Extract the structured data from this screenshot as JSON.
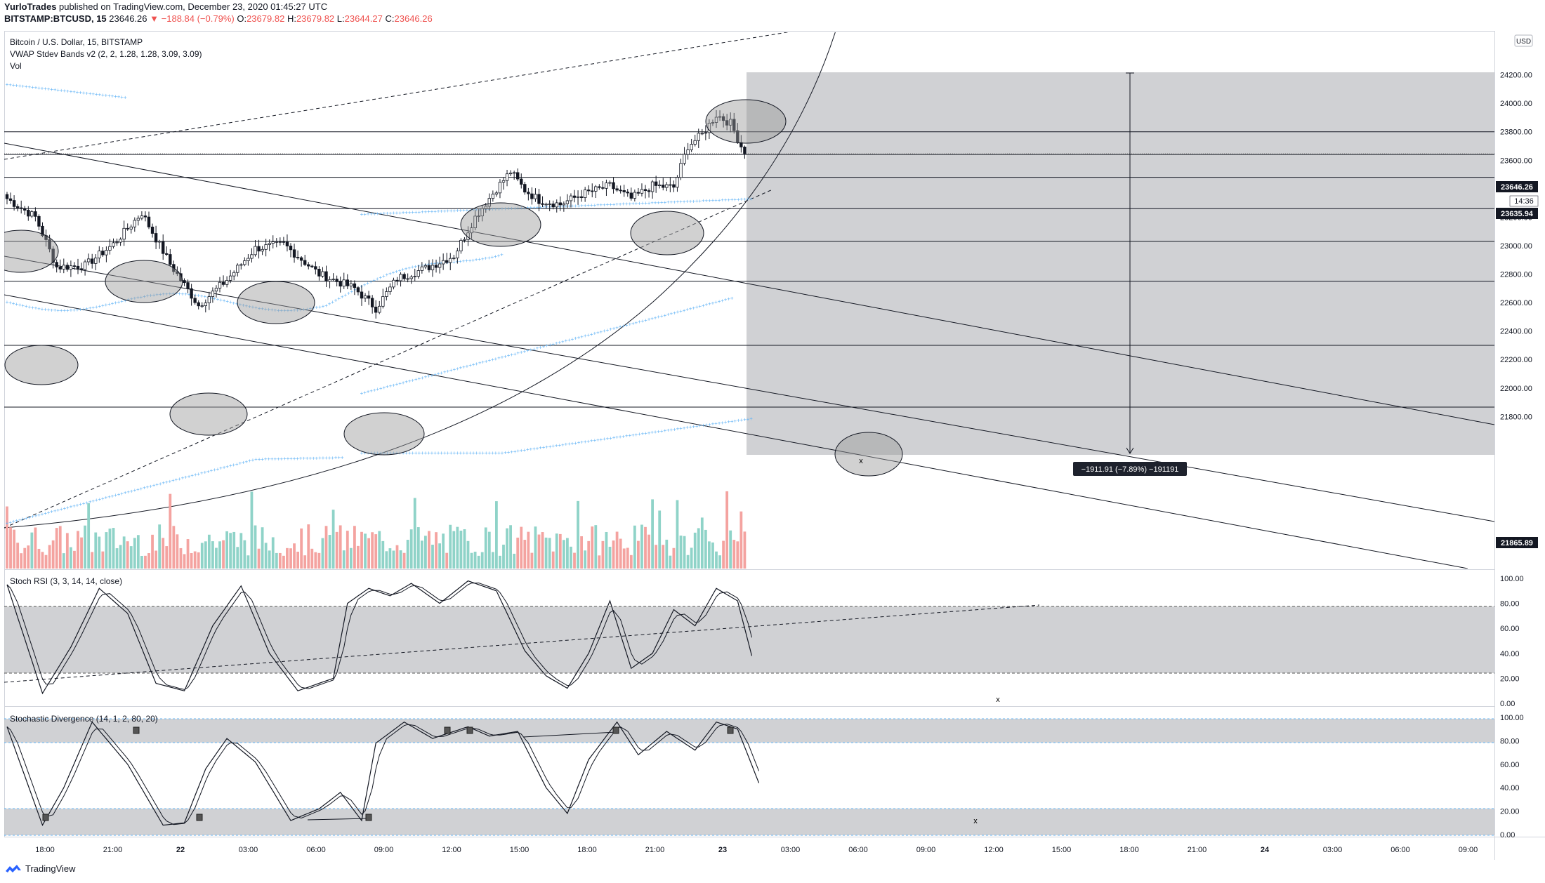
{
  "header": {
    "line1": {
      "author": "YurloTrades",
      "rest": "published on TradingView.com, December 23, 2020 01:45:27 UTC"
    },
    "line2": {
      "symbol": "BITSTAMP:BTCUSD, 15",
      "price": "23646.26",
      "change": "−188.84 (−0.79%)",
      "o_label": "O:",
      "o": "23679.82",
      "h_label": "H:",
      "h": "23679.82",
      "l_label": "L:",
      "l": "23644.27",
      "c_label": "C:",
      "c": "23646.26"
    }
  },
  "legend": {
    "title": "Bitcoin / U.S. Dollar, 15, BITSTAMP",
    "vwap": "VWAP Stdev Bands v2 (2, 2, 1.28, 1.28, 3.09, 3.09)",
    "vol": "Vol",
    "stoch_rsi": "Stoch RSI (3, 3, 14, 14, close)",
    "stoch_div": "Stochastic Divergence (14, 1, 2, 80, 20)"
  },
  "currency_button": "USD",
  "price_tags": {
    "last": "23646.26",
    "countdown": "14:36",
    "level": "23635.94",
    "bottom": "21865.89"
  },
  "measure_label": "−1911.91 (−7.89%) −191191",
  "x_marks": [
    "x",
    "x",
    "x"
  ],
  "footer": {
    "brand": "TradingView"
  },
  "colors": {
    "up": "#26a69a",
    "down": "#ef5350",
    "vol_up": "#8fd3c8",
    "vol_down": "#f4a3a0",
    "vwap": "#64b5f6",
    "shade": "#c8c9cc",
    "line": "#131722"
  },
  "chart_data": [
    {
      "type": "candlestick",
      "title": "Bitcoin / U.S. Dollar, 15, BITSTAMP",
      "ylim": [
        21700,
        24400
      ],
      "y_ticks": [
        "24200.00",
        "24000.00",
        "23800.00",
        "23600.00",
        "23400.00",
        "23200.00",
        "23000.00",
        "22800.00",
        "22600.00",
        "22400.00",
        "22200.00",
        "22000.00",
        "21800.00"
      ],
      "x_ticks": [
        "18:00",
        "21:00",
        "22",
        "03:00",
        "06:00",
        "09:00",
        "12:00",
        "15:00",
        "18:00",
        "21:00",
        "23",
        "03:00",
        "06:00",
        "09:00",
        "12:00",
        "15:00",
        "18:00",
        "21:00",
        "24",
        "03:00",
        "06:00",
        "09:00"
      ],
      "horizontal_levels": [
        23800,
        23640,
        23480,
        23260,
        23030,
        22750,
        22300,
        21865.89
      ],
      "close_anchors": [
        [
          0,
          23330
        ],
        [
          8,
          23200
        ],
        [
          14,
          22850
        ],
        [
          22,
          22860
        ],
        [
          30,
          23010
        ],
        [
          38,
          23230
        ],
        [
          46,
          22870
        ],
        [
          54,
          22580
        ],
        [
          62,
          22760
        ],
        [
          70,
          22980
        ],
        [
          78,
          23010
        ],
        [
          88,
          22800
        ],
        [
          98,
          22700
        ],
        [
          104,
          22560
        ],
        [
          110,
          22770
        ],
        [
          118,
          22840
        ],
        [
          126,
          22930
        ],
        [
          132,
          23200
        ],
        [
          138,
          23400
        ],
        [
          142,
          23520
        ],
        [
          146,
          23390
        ],
        [
          150,
          23320
        ],
        [
          156,
          23290
        ],
        [
          162,
          23360
        ],
        [
          170,
          23420
        ],
        [
          176,
          23330
        ],
        [
          182,
          23420
        ],
        [
          188,
          23410
        ],
        [
          192,
          23700
        ],
        [
          196,
          23780
        ],
        [
          200,
          23920
        ],
        [
          204,
          23860
        ],
        [
          208,
          23646.26
        ]
      ],
      "volume_series_name": "Vol"
    },
    {
      "type": "line",
      "title": "Stoch RSI (3, 3, 14, 14, close)",
      "ylim": [
        0,
        100
      ],
      "y_ticks": [
        "100.00",
        "80.00",
        "60.00",
        "40.00",
        "20.00",
        "0.00"
      ],
      "band": [
        20,
        80
      ],
      "k_anchors": [
        [
          0,
          95
        ],
        [
          10,
          8
        ],
        [
          18,
          45
        ],
        [
          26,
          92
        ],
        [
          34,
          72
        ],
        [
          42,
          16
        ],
        [
          50,
          10
        ],
        [
          58,
          62
        ],
        [
          66,
          94
        ],
        [
          74,
          40
        ],
        [
          82,
          10
        ],
        [
          92,
          20
        ],
        [
          96,
          80
        ],
        [
          102,
          92
        ],
        [
          108,
          86
        ],
        [
          114,
          96
        ],
        [
          122,
          80
        ],
        [
          130,
          98
        ],
        [
          138,
          90
        ],
        [
          146,
          42
        ],
        [
          152,
          22
        ],
        [
          158,
          12
        ],
        [
          164,
          40
        ],
        [
          170,
          82
        ],
        [
          176,
          28
        ],
        [
          182,
          40
        ],
        [
          188,
          75
        ],
        [
          194,
          62
        ],
        [
          200,
          92
        ],
        [
          206,
          82
        ],
        [
          210,
          38
        ]
      ]
    },
    {
      "type": "line",
      "title": "Stochastic Divergence (14, 1, 2, 80, 20)",
      "ylim": [
        0,
        100
      ],
      "y_ticks": [
        "100.00",
        "80.00",
        "60.00",
        "40.00",
        "20.00",
        "0.00"
      ],
      "band_low": [
        0,
        20
      ],
      "band_high": [
        80,
        100
      ],
      "k_anchors": [
        [
          0,
          92
        ],
        [
          10,
          8
        ],
        [
          16,
          40
        ],
        [
          24,
          96
        ],
        [
          34,
          60
        ],
        [
          44,
          8
        ],
        [
          50,
          10
        ],
        [
          56,
          56
        ],
        [
          62,
          82
        ],
        [
          70,
          62
        ],
        [
          80,
          12
        ],
        [
          88,
          22
        ],
        [
          94,
          36
        ],
        [
          100,
          12
        ],
        [
          104,
          78
        ],
        [
          112,
          96
        ],
        [
          120,
          82
        ],
        [
          130,
          92
        ],
        [
          136,
          84
        ],
        [
          144,
          88
        ],
        [
          152,
          40
        ],
        [
          158,
          18
        ],
        [
          164,
          64
        ],
        [
          172,
          96
        ],
        [
          178,
          68
        ],
        [
          186,
          88
        ],
        [
          194,
          72
        ],
        [
          200,
          96
        ],
        [
          206,
          90
        ],
        [
          212,
          44
        ]
      ]
    }
  ]
}
